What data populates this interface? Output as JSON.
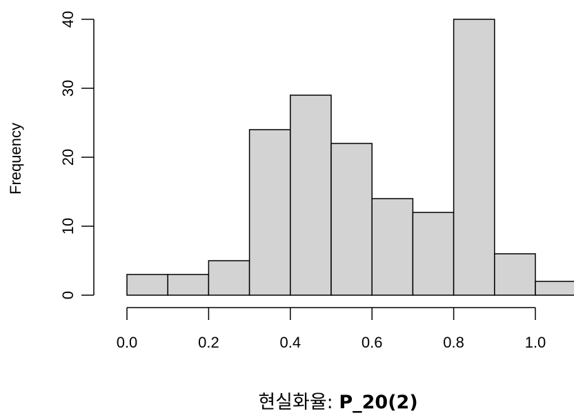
{
  "chart_data": {
    "type": "bar",
    "title": "",
    "xlabel": "현실화율: P_20(2)",
    "xlabel_prefix": "현실화율: ",
    "xlabel_suffix": "P_20(2)",
    "ylabel": "Frequency",
    "bins": [
      {
        "from": 0.0,
        "to": 0.1,
        "count": 3
      },
      {
        "from": 0.1,
        "to": 0.2,
        "count": 3
      },
      {
        "from": 0.2,
        "to": 0.3,
        "count": 5
      },
      {
        "from": 0.3,
        "to": 0.4,
        "count": 24
      },
      {
        "from": 0.4,
        "to": 0.5,
        "count": 29
      },
      {
        "from": 0.5,
        "to": 0.6,
        "count": 22
      },
      {
        "from": 0.6,
        "to": 0.7,
        "count": 14
      },
      {
        "from": 0.7,
        "to": 0.8,
        "count": 12
      },
      {
        "from": 0.8,
        "to": 0.9,
        "count": 40
      },
      {
        "from": 0.9,
        "to": 1.0,
        "count": 6
      },
      {
        "from": 1.0,
        "to": 1.1,
        "count": 2
      }
    ],
    "x_ticks": [
      "0.0",
      "0.2",
      "0.4",
      "0.6",
      "0.8",
      "1.0"
    ],
    "y_ticks": [
      "0",
      "10",
      "20",
      "30",
      "40"
    ],
    "xlim": [
      0.0,
      1.1
    ],
    "ylim": [
      0,
      40
    ],
    "bar_fill": "#d3d3d3",
    "bar_stroke": "#000000",
    "grid": false,
    "legend": "none"
  }
}
